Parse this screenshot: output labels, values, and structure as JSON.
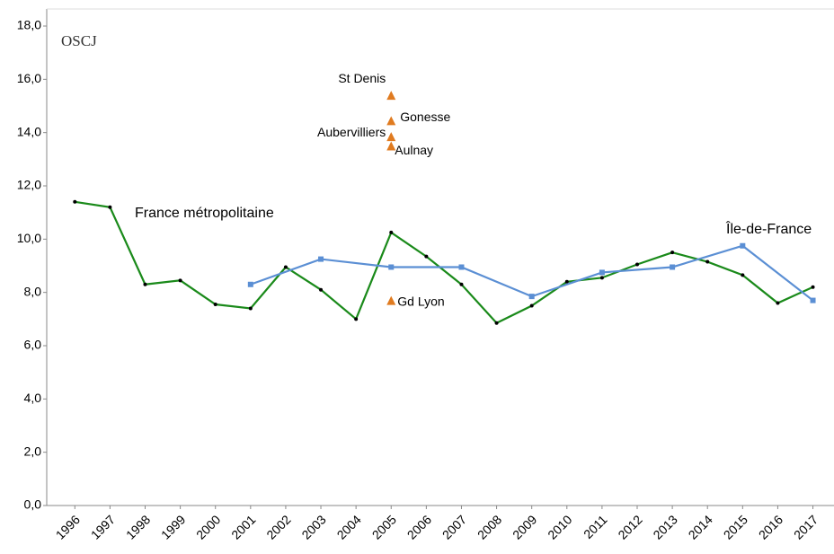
{
  "logo": "OSCJ",
  "chart_data": {
    "type": "line",
    "xlim": [
      1995.2,
      2017.6
    ],
    "xticks": [
      1996,
      1997,
      1998,
      1999,
      2000,
      2001,
      2002,
      2003,
      2004,
      2005,
      2006,
      2007,
      2008,
      2009,
      2010,
      2011,
      2012,
      2013,
      2014,
      2015,
      2016,
      2017
    ],
    "ylim": [
      0,
      18
    ],
    "yticks": [
      {
        "value": 0,
        "label": "0,0"
      },
      {
        "value": 2,
        "label": "2,0"
      },
      {
        "value": 4,
        "label": "4,0"
      },
      {
        "value": 6,
        "label": "6,0"
      },
      {
        "value": 8,
        "label": "8,0"
      },
      {
        "value": 10,
        "label": "10,0"
      },
      {
        "value": 12,
        "label": "12,0"
      },
      {
        "value": 14,
        "label": "14,0"
      },
      {
        "value": 16,
        "label": "16,0"
      },
      {
        "value": 18,
        "label": "18,0"
      }
    ],
    "series": [
      {
        "name": "France métropolitaine",
        "color": "#1a8a1a",
        "type": "line",
        "x": [
          1996,
          1997,
          1998,
          1999,
          2000,
          2001,
          2002,
          2003,
          2004,
          2005,
          2006,
          2007,
          2008,
          2009,
          2010,
          2011,
          2012,
          2013,
          2014,
          2015,
          2016,
          2017
        ],
        "values": [
          11.4,
          11.2,
          8.3,
          8.45,
          7.55,
          7.4,
          8.95,
          8.1,
          7.0,
          10.25,
          9.35,
          8.3,
          6.85,
          7.5,
          8.4,
          8.55,
          9.05,
          9.5,
          9.15,
          8.65,
          7.6,
          8.2
        ]
      },
      {
        "name": "Île-de-France",
        "color": "#5b8fd4",
        "type": "line",
        "x": [
          2001,
          2003,
          2005,
          2007,
          2009,
          2011,
          2013,
          2015,
          2017
        ],
        "values": [
          8.3,
          9.25,
          8.95,
          8.95,
          7.85,
          8.75,
          8.95,
          9.75,
          7.7
        ]
      },
      {
        "color": "#e07b20",
        "type": "scatter",
        "x": [
          2005,
          2005,
          2005,
          2005,
          2005
        ],
        "values": [
          15.4,
          14.45,
          13.85,
          13.5,
          7.7
        ],
        "labels": [
          "St Denis",
          "Gonesse",
          "Aubervilliers",
          "Aulnay",
          "Gd Lyon"
        ]
      }
    ]
  }
}
